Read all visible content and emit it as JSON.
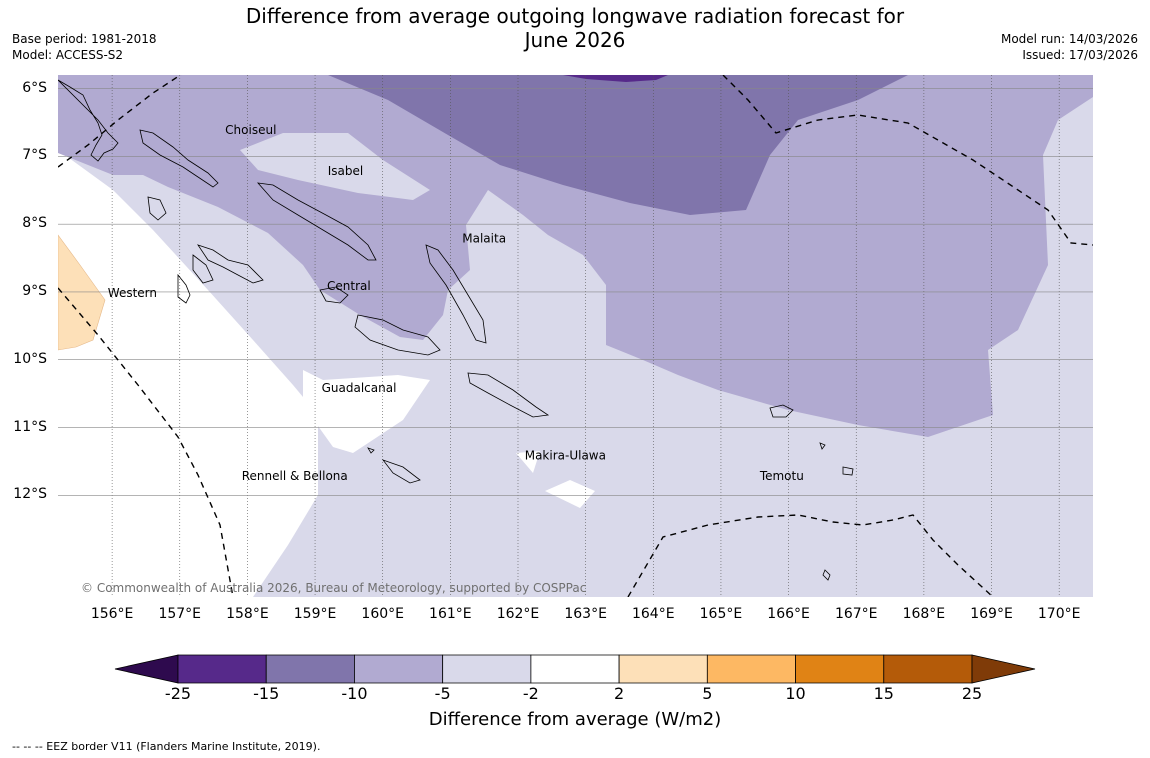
{
  "title_line1": "Difference from average outgoing longwave radiation forecast for",
  "title_line2": "June 2026",
  "base_period": "Base period: 1981-2018",
  "model": "Model: ACCESS-S2",
  "model_run": "Model run: 14/03/2026",
  "issued": "Issued: 17/03/2026",
  "lat_labels": [
    "6°S",
    "7°S",
    "8°S",
    "9°S",
    "10°S",
    "11°S",
    "12°S"
  ],
  "lon_labels": [
    "156°E",
    "157°E",
    "158°E",
    "159°E",
    "160°E",
    "161°E",
    "162°E",
    "163°E",
    "164°E",
    "165°E",
    "166°E",
    "167°E",
    "168°E",
    "169°E",
    "170°E"
  ],
  "map": {
    "lon_range": [
      155.2,
      170.5
    ],
    "lat_range": [
      -5.8,
      -13.5
    ],
    "province_labels": [
      {
        "name": "Choiseul",
        "lon": 158.05,
        "lat": -6.6
      },
      {
        "name": "Isabel",
        "lon": 159.45,
        "lat": -7.2
      },
      {
        "name": "Malaita",
        "lon": 161.5,
        "lat": -8.2
      },
      {
        "name": "Western",
        "lon": 156.3,
        "lat": -9.0
      },
      {
        "name": "Central",
        "lon": 159.5,
        "lat": -8.9
      },
      {
        "name": "Guadalcanal",
        "lon": 159.65,
        "lat": -10.4
      },
      {
        "name": "Makira-Ulawa",
        "lon": 162.7,
        "lat": -11.4
      },
      {
        "name": "Rennell & Bellona",
        "lon": 158.7,
        "lat": -11.7
      },
      {
        "name": "Temotu",
        "lon": 165.9,
        "lat": -11.7
      }
    ],
    "copyright": "© Commonwealth of Australia 2026, Bureau of Meteorology, supported by COSPPac"
  },
  "colorbar": {
    "ticks": [
      "-25",
      "-15",
      "-10",
      "-5",
      "-2",
      "2",
      "5",
      "10",
      "15",
      "25"
    ],
    "colors": [
      "#56298a",
      "#8075ab",
      "#b1aad1",
      "#d9d9ea",
      "#ffffff",
      "#fde0b8",
      "#fdb863",
      "#e08315",
      "#b45b09"
    ],
    "extend_low_color": "#2e0a4e",
    "extend_high_color": "#7f3b08",
    "label": "Difference from average (W/m2)"
  },
  "footnote": "--  --  -- EEZ border V11 (Flanders Marine Institute, 2019)."
}
